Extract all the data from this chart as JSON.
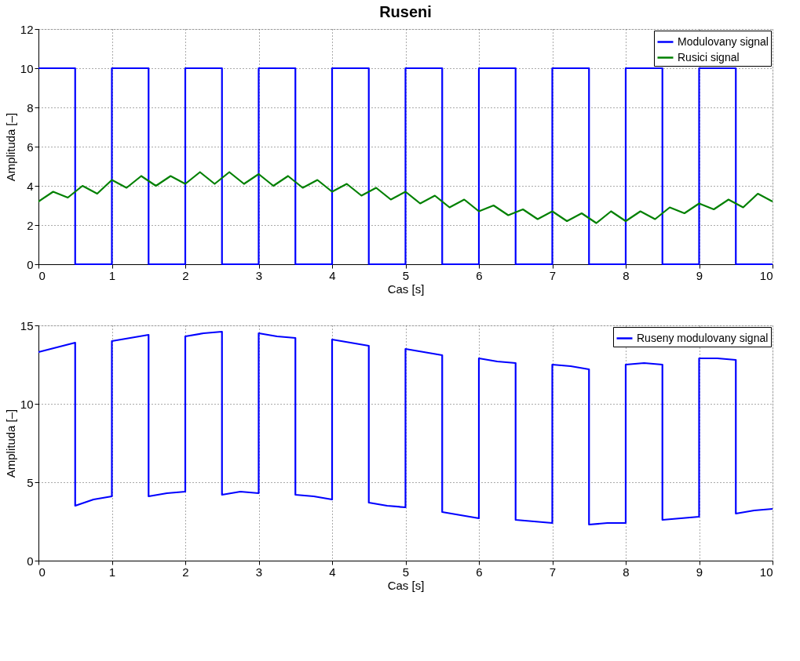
{
  "chart_data": [
    {
      "type": "line",
      "title": "Ruseni",
      "xlabel": "Cas [s]",
      "ylabel": "Amplituda [–]",
      "xlim": [
        0,
        10
      ],
      "xticks": [
        0,
        1,
        2,
        3,
        4,
        5,
        6,
        7,
        8,
        9,
        10
      ],
      "ylim": [
        0,
        12
      ],
      "yticks": [
        0,
        2,
        4,
        6,
        8,
        10,
        12
      ],
      "grid": true,
      "legend": "top right",
      "line_style": "solid",
      "series": [
        {
          "name": "Modulovany signal",
          "color": "#0000ff",
          "x": [
            0,
            0.5,
            0.5,
            1,
            1,
            1.5,
            1.5,
            2,
            2,
            2.5,
            2.5,
            3,
            3,
            3.5,
            3.5,
            4,
            4,
            4.5,
            4.5,
            5,
            5,
            5.5,
            5.5,
            6,
            6,
            6.5,
            6.5,
            7,
            7,
            7.5,
            7.5,
            8,
            8,
            8.5,
            8.5,
            9,
            9,
            9.5,
            9.5,
            10
          ],
          "values": [
            10,
            10,
            0,
            0,
            10,
            10,
            0,
            0,
            10,
            10,
            0,
            0,
            10,
            10,
            0,
            0,
            10,
            10,
            0,
            0,
            10,
            10,
            0,
            0,
            10,
            10,
            0,
            0,
            10,
            10,
            0,
            0,
            10,
            10,
            0,
            0,
            10,
            10,
            0,
            0
          ]
        },
        {
          "name": "Rusici signal",
          "color": "#008000",
          "x": [
            0,
            0.2,
            0.4,
            0.6,
            0.8,
            1,
            1.2,
            1.4,
            1.6,
            1.8,
            2,
            2.2,
            2.4,
            2.6,
            2.8,
            3,
            3.2,
            3.4,
            3.6,
            3.8,
            4,
            4.2,
            4.4,
            4.6,
            4.8,
            5,
            5.2,
            5.4,
            5.6,
            5.8,
            6,
            6.2,
            6.4,
            6.6,
            6.8,
            7,
            7.2,
            7.4,
            7.6,
            7.8,
            8,
            8.2,
            8.4,
            8.6,
            8.8,
            9,
            9.2,
            9.4,
            9.6,
            9.8,
            10
          ],
          "values": [
            3.2,
            3.7,
            3.4,
            4.0,
            3.6,
            4.3,
            3.9,
            4.5,
            4.0,
            4.5,
            4.1,
            4.7,
            4.1,
            4.7,
            4.1,
            4.6,
            4.0,
            4.5,
            3.9,
            4.3,
            3.7,
            4.1,
            3.5,
            3.9,
            3.3,
            3.7,
            3.1,
            3.5,
            2.9,
            3.3,
            2.7,
            3.0,
            2.5,
            2.8,
            2.3,
            2.7,
            2.2,
            2.6,
            2.1,
            2.7,
            2.2,
            2.7,
            2.3,
            2.9,
            2.6,
            3.1,
            2.8,
            3.3,
            2.9,
            3.6,
            3.2
          ]
        }
      ]
    },
    {
      "type": "line",
      "xlabel": "Cas [s]",
      "ylabel": "Amplituda [–]",
      "xlim": [
        0,
        10
      ],
      "xticks": [
        0,
        1,
        2,
        3,
        4,
        5,
        6,
        7,
        8,
        9,
        10
      ],
      "ylim": [
        0,
        15
      ],
      "yticks": [
        0,
        5,
        10,
        15
      ],
      "grid": true,
      "legend": "top right",
      "line_style": "solid",
      "series": [
        {
          "name": "Ruseny modulovany signal",
          "color": "#0000ff",
          "x": [
            0,
            0.25,
            0.5,
            0.5,
            0.75,
            1,
            1,
            1.25,
            1.5,
            1.5,
            1.75,
            2,
            2,
            2.25,
            2.5,
            2.5,
            2.75,
            3,
            3,
            3.25,
            3.5,
            3.5,
            3.75,
            4,
            4,
            4.25,
            4.5,
            4.5,
            4.75,
            5,
            5,
            5.25,
            5.5,
            5.5,
            5.75,
            6,
            6,
            6.25,
            6.5,
            6.5,
            6.75,
            7,
            7,
            7.25,
            7.5,
            7.5,
            7.75,
            8,
            8,
            8.25,
            8.5,
            8.5,
            8.75,
            9,
            9,
            9.25,
            9.5,
            9.5,
            9.75,
            10
          ],
          "values": [
            13.3,
            13.6,
            13.9,
            3.5,
            3.9,
            4.1,
            14.0,
            14.2,
            14.4,
            4.1,
            4.3,
            4.4,
            14.3,
            14.5,
            14.6,
            4.2,
            4.4,
            4.3,
            14.5,
            14.3,
            14.2,
            4.2,
            4.1,
            3.9,
            14.1,
            13.9,
            13.7,
            3.7,
            3.5,
            3.4,
            13.5,
            13.3,
            13.1,
            3.1,
            2.9,
            2.7,
            12.9,
            12.7,
            12.6,
            2.6,
            2.5,
            2.4,
            12.5,
            12.4,
            12.2,
            2.3,
            2.4,
            2.4,
            12.5,
            12.6,
            12.5,
            2.6,
            2.7,
            2.8,
            12.9,
            12.9,
            12.8,
            3.0,
            3.2,
            3.3
          ]
        }
      ]
    }
  ]
}
